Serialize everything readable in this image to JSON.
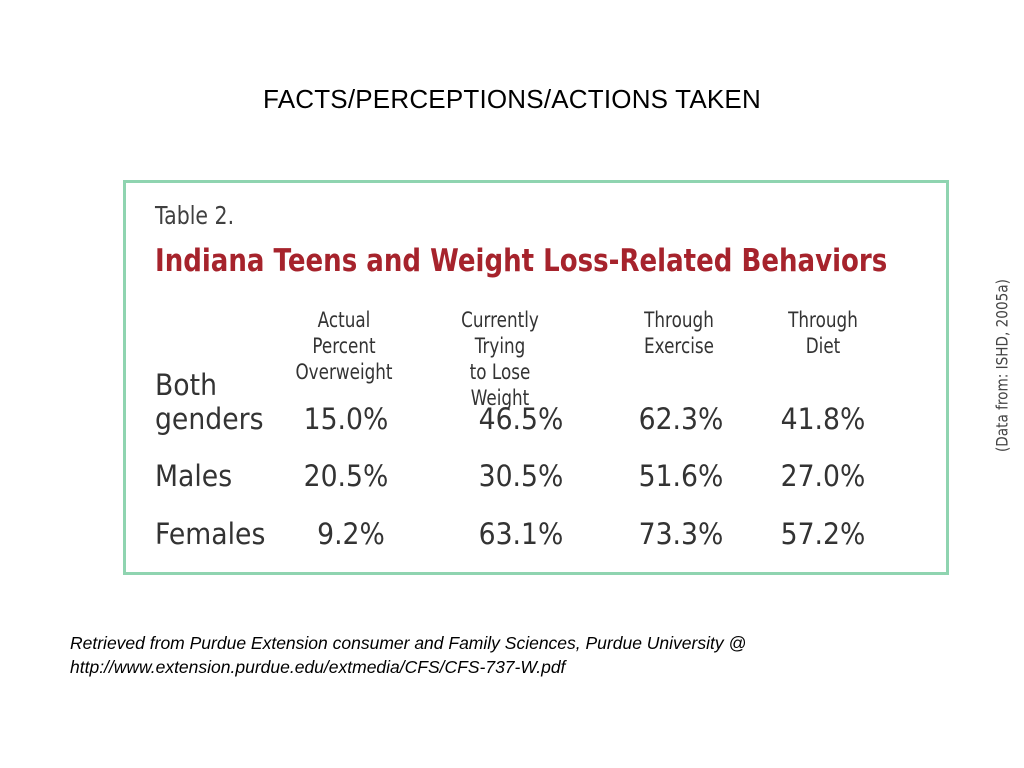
{
  "slide": {
    "title": "FACTS/PERCEPTIONS/ACTIONS TAKEN"
  },
  "table": {
    "number": "Table 2.",
    "caption": "Indiana Teens and Weight Loss-Related Behaviors",
    "columns": [
      {
        "line1": "Actual Percent",
        "line2": "Overweight"
      },
      {
        "line1": "Currently Trying",
        "line2": "to Lose Weight"
      },
      {
        "line1": "Through",
        "line2": "Exercise"
      },
      {
        "line1": "Through",
        "line2": "Diet"
      }
    ],
    "rows": [
      {
        "label_line1": "Both",
        "label_line2": "genders",
        "values": [
          "15.0%",
          "46.5%",
          "62.3%",
          "41.8%"
        ]
      },
      {
        "label_line1": "Males",
        "label_line2": "",
        "values": [
          "20.5%",
          "30.5%",
          "51.6%",
          "27.0%"
        ]
      },
      {
        "label_line1": "Females",
        "label_line2": "",
        "values": [
          "9.2%",
          "63.1%",
          "73.3%",
          "57.2%"
        ]
      }
    ],
    "source_note": "(Data from: ISHD, 2005a)"
  },
  "footnote": {
    "line1": "Retrieved from Purdue Extension consumer and Family Sciences, Purdue University @",
    "line2": "http://www.extension.purdue.edu/extmedia/CFS/CFS-737-W.pdf"
  },
  "colors": {
    "frame_border": "#8fd4b0",
    "caption": "#a6232c",
    "body_text": "#333333"
  }
}
